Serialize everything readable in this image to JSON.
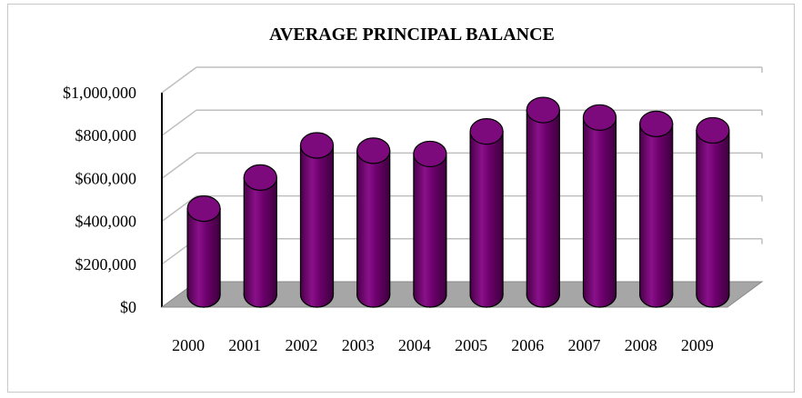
{
  "chart_data": {
    "type": "bar",
    "title": "AVERAGE PRINCIPAL BALANCE",
    "xlabel": "",
    "ylabel": "",
    "categories": [
      "2000",
      "2001",
      "2002",
      "2003",
      "2004",
      "2005",
      "2006",
      "2007",
      "2008",
      "2009"
    ],
    "values": [
      400000,
      545000,
      695000,
      670000,
      655000,
      760000,
      860000,
      825000,
      795000,
      765000
    ],
    "ylim": [
      0,
      1000000
    ],
    "yticks": [
      0,
      200000,
      400000,
      600000,
      800000,
      1000000
    ],
    "ytick_labels": [
      "$0",
      "$200,000",
      "$400,000",
      "$600,000",
      "$800,000",
      "$1,000,000"
    ],
    "grid": true,
    "legend": "none",
    "colors": {
      "bar": "#6b006b",
      "bar_highlight": "#9a1a9a",
      "bar_top": "#7d0a7d",
      "floor": "#a6a6a6",
      "grid": "#bfbfbf",
      "axis": "#000000"
    }
  }
}
